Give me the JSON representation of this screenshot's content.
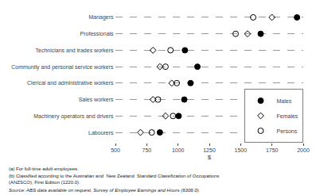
{
  "chart_data": {
    "type": "scatter",
    "orientation": "horizontal",
    "categories": [
      "Managers",
      "Professionals",
      "Technicians and trades workers",
      "Community and personal service workers",
      "Clerical and administrative workers",
      "Sales workers",
      "Machinery operators and drivers",
      "Labourers"
    ],
    "series": [
      {
        "name": "Males",
        "color": "#000000",
        "marker": "circle",
        "values": [
          1950,
          1660,
          1055,
          1155,
          1100,
          1050,
          1005,
          855
        ]
      },
      {
        "name": "Females",
        "color": "#000000",
        "marker": "diamond-open",
        "values": [
          1750,
          1555,
          800,
          855,
          950,
          800,
          900,
          700
        ]
      },
      {
        "name": "Persons",
        "color": "#000000",
        "marker": "circle-open",
        "values": [
          1600,
          1460,
          940,
          900,
          990,
          840,
          960,
          790
        ]
      }
    ],
    "xlabel": "$",
    "xlim": [
      500,
      2000
    ],
    "xticks": [
      500,
      750,
      1000,
      1250,
      1500,
      1750,
      2000
    ],
    "grid": true,
    "legend": "lower right",
    "annotations": [
      "(a) For full-time adult employees.",
      "(b) Classified according to the Australian and  New Zealand  Standard Classification of Occupations\n(ANZSCO), First Edition (1220.0).",
      "Source: ABS data available on request, Survey of Employee Earnings and Hours (6306.0)."
    ]
  }
}
